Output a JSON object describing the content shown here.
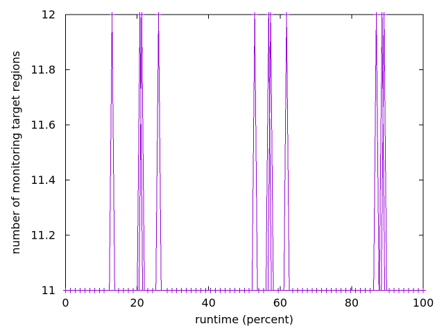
{
  "figure": {
    "background_color": "#ffffff",
    "frame_color": "#000000",
    "text_color": "#000000"
  },
  "chart_data": {
    "type": "line",
    "title": "",
    "xlabel": "runtime (percent)",
    "ylabel": "number of monitoring target regions",
    "xlim": [
      0,
      100
    ],
    "ylim": [
      11,
      12
    ],
    "xticks": [
      0,
      20,
      40,
      60,
      80,
      100
    ],
    "yticks": [
      11,
      11.2,
      11.4,
      11.6,
      11.8,
      12
    ],
    "xtick_labels": [
      "0",
      "20",
      "40",
      "60",
      "80",
      "100"
    ],
    "ytick_labels": [
      "11",
      "11.2",
      "11.4",
      "11.6",
      "11.8",
      "12"
    ],
    "grid": false,
    "legend": "none",
    "line_color": "#9400d3",
    "marker": "plus",
    "baseline_value": 11,
    "peak_value": 12,
    "sample_point_count": 75,
    "marker_skip_radius_percent": 1.1,
    "spike_half_width_percent": 0.75,
    "spike_peaks_percent": [
      13.0,
      20.8,
      21.3,
      26.0,
      52.9,
      56.8,
      57.35,
      61.8,
      86.9,
      88.5,
      89.05
    ]
  }
}
